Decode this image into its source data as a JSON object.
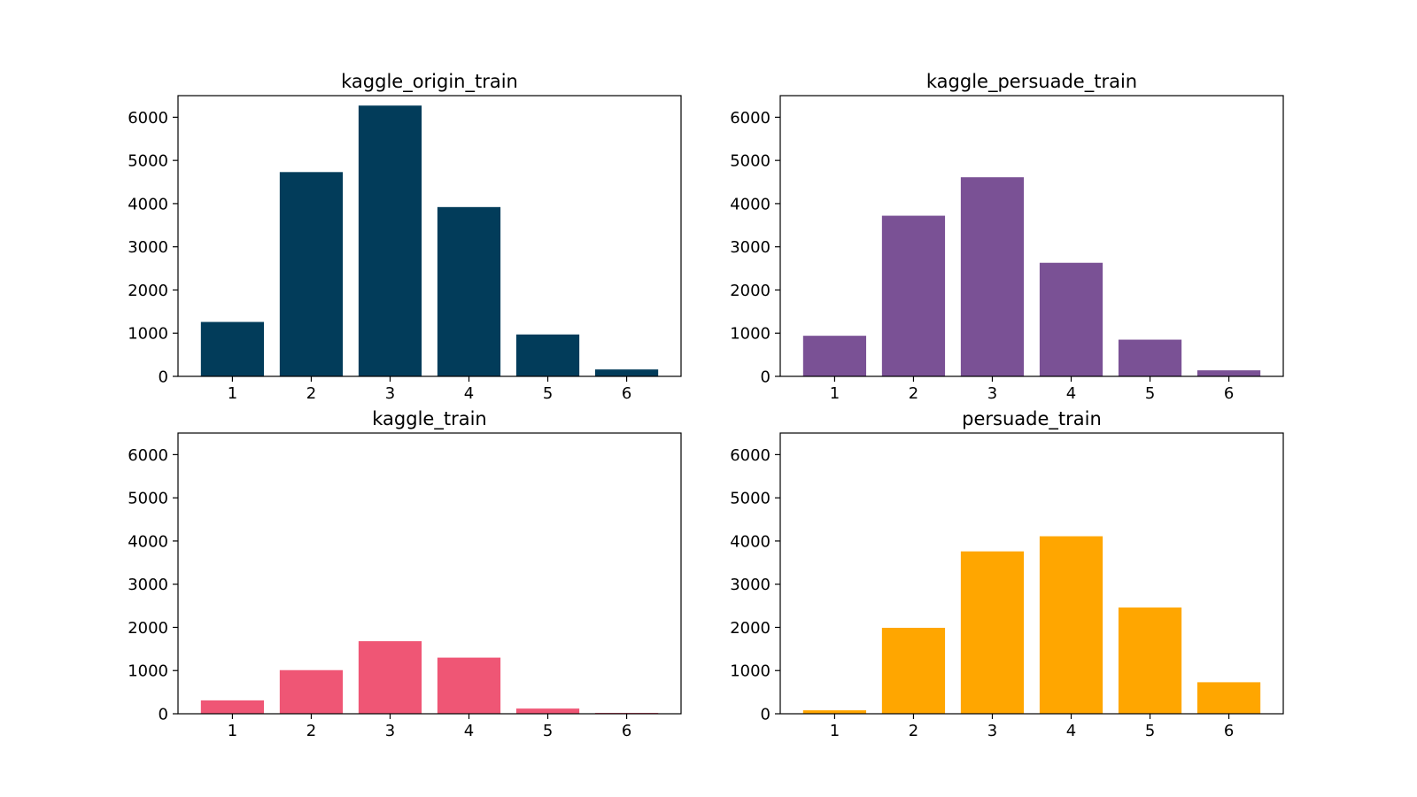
{
  "figure": {
    "background": "#ffffff"
  },
  "chart_data": [
    {
      "type": "bar",
      "title": "kaggle_origin_train",
      "categories": [
        "1",
        "2",
        "3",
        "4",
        "5",
        "6"
      ],
      "values": [
        1260,
        4730,
        6270,
        3920,
        970,
        160
      ],
      "color": "#023c5a",
      "ylim": [
        0,
        6500
      ],
      "yticks": [
        "0",
        "1000",
        "2000",
        "3000",
        "4000",
        "5000",
        "6000"
      ],
      "legend": "none",
      "grid": false
    },
    {
      "type": "bar",
      "title": "kaggle_persuade_train",
      "categories": [
        "1",
        "2",
        "3",
        "4",
        "5",
        "6"
      ],
      "values": [
        940,
        3720,
        4610,
        2630,
        850,
        140
      ],
      "color": "#7a5195",
      "ylim": [
        0,
        6500
      ],
      "yticks": [
        "0",
        "1000",
        "2000",
        "3000",
        "4000",
        "5000",
        "6000"
      ],
      "legend": "none",
      "grid": false
    },
    {
      "type": "bar",
      "title": "kaggle_train",
      "categories": [
        "1",
        "2",
        "3",
        "4",
        "5",
        "6"
      ],
      "values": [
        310,
        1010,
        1680,
        1300,
        120,
        20
      ],
      "color": "#ef5675",
      "ylim": [
        0,
        6500
      ],
      "yticks": [
        "0",
        "1000",
        "2000",
        "3000",
        "4000",
        "5000",
        "6000"
      ],
      "legend": "none",
      "grid": false
    },
    {
      "type": "bar",
      "title": "persuade_train",
      "categories": [
        "1",
        "2",
        "3",
        "4",
        "5",
        "6"
      ],
      "values": [
        80,
        1990,
        3760,
        4110,
        2460,
        730
      ],
      "color": "#ffa600",
      "ylim": [
        0,
        6500
      ],
      "yticks": [
        "0",
        "1000",
        "2000",
        "3000",
        "4000",
        "5000",
        "6000"
      ],
      "legend": "none",
      "grid": false
    }
  ]
}
